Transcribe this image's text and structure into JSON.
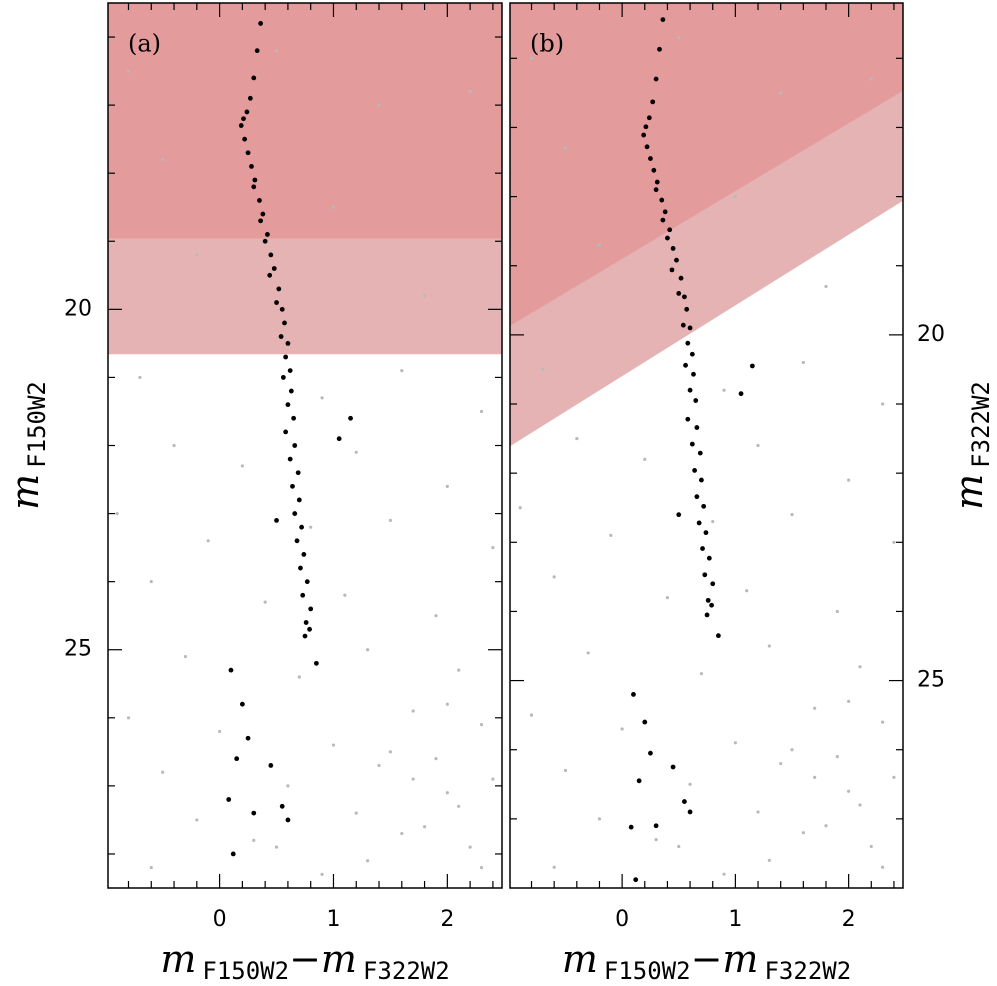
{
  "chart_data": [
    {
      "type": "scatter",
      "panel_label": "(a)",
      "y_axis_side": "left",
      "y_inverted": true,
      "xlim": [
        -0.98,
        2.48
      ],
      "ylim": [
        15.5,
        28.5
      ],
      "xticks": [
        0,
        1,
        2
      ],
      "xticks_minor": [
        -0.8,
        -0.6,
        -0.4,
        -0.2,
        0.2,
        0.4,
        0.6,
        0.8,
        1.2,
        1.4,
        1.6,
        1.8,
        2.2,
        2.4
      ],
      "yticks": [
        20,
        25
      ],
      "yticks_minor": [
        16,
        17,
        18,
        19,
        21,
        22,
        23,
        24,
        26,
        27,
        28
      ],
      "x_label": [
        {
          "text": "m",
          "italic": true
        },
        {
          "text": "F150W2",
          "sub": true
        },
        {
          "text": "−"
        },
        {
          "text": "m",
          "italic": true
        },
        {
          "text": "F322W2",
          "sub": true
        }
      ],
      "y_label": [
        {
          "text": "m",
          "italic": true
        },
        {
          "text": "F150W2",
          "sub": true
        }
      ],
      "shaded_regions": [
        {
          "color": "#e5b3b3",
          "lower_edge": {
            "x": [
              -0.98,
              2.48
            ],
            "y": [
              20.66,
              20.66
            ]
          }
        },
        {
          "color": "#e49b9b",
          "lower_edge": {
            "x": [
              -0.98,
              2.48
            ],
            "y": [
              18.96,
              18.96
            ]
          }
        }
      ],
      "series": [
        {
          "color": "#b9b9b9",
          "x": [
            -0.8,
            -0.5,
            -0.2,
            0.5,
            1.0,
            1.4,
            1.8,
            2.2,
            -0.7,
            0.9,
            1.6,
            2.3,
            -0.4,
            0.2,
            1.2,
            2.0,
            -0.9,
            -0.1,
            0.8,
            1.5,
            2.4,
            -0.6,
            0.4,
            1.1,
            1.9,
            -0.3,
            0.7,
            1.3,
            2.1,
            -0.8,
            0.0,
            1.0,
            1.7,
            2.3,
            -0.5,
            0.6,
            1.4,
            2.0,
            2.4,
            -0.2,
            0.3,
            1.2,
            1.8,
            2.2,
            1.5,
            1.9,
            2.1,
            1.6,
            2.3,
            1.3,
            0.9,
            0.5,
            -0.6,
            1.7,
            2.0
          ],
          "values": [
            16.5,
            17.8,
            19.2,
            16.2,
            18.5,
            17.0,
            19.8,
            16.8,
            21.0,
            21.3,
            20.9,
            21.5,
            22.0,
            22.3,
            22.1,
            22.6,
            23.0,
            23.4,
            23.2,
            23.1,
            23.5,
            24.0,
            24.3,
            24.2,
            24.5,
            25.1,
            25.4,
            25.0,
            25.3,
            26.0,
            26.2,
            26.4,
            25.9,
            26.1,
            26.8,
            27.0,
            26.7,
            27.1,
            26.9,
            27.5,
            27.8,
            27.4,
            27.6,
            27.9,
            26.5,
            26.6,
            27.3,
            27.7,
            28.2,
            28.1,
            28.3,
            27.9,
            28.2,
            26.9,
            25.8
          ]
        },
        {
          "color": "#000000",
          "x": [
            0.36,
            0.33,
            0.3,
            0.27,
            0.24,
            0.21,
            0.19,
            0.22,
            0.25,
            0.28,
            0.31,
            0.3,
            0.35,
            0.38,
            0.36,
            0.42,
            0.4,
            0.45,
            0.48,
            0.44,
            0.52,
            0.5,
            0.55,
            0.57,
            0.54,
            0.6,
            0.58,
            0.62,
            0.56,
            0.63,
            0.6,
            0.65,
            0.58,
            0.66,
            0.62,
            0.69,
            0.64,
            0.7,
            0.66,
            0.72,
            0.68,
            0.74,
            0.71,
            0.77,
            0.73,
            0.8,
            0.76,
            0.79,
            0.75,
            1.15,
            1.05,
            0.85,
            0.5,
            0.1,
            0.2,
            0.25,
            0.15,
            0.45,
            0.08,
            0.55,
            0.3,
            0.6,
            0.12
          ],
          "values": [
            15.8,
            16.2,
            16.6,
            16.9,
            17.1,
            17.2,
            17.3,
            17.5,
            17.7,
            17.9,
            18.1,
            18.2,
            18.4,
            18.6,
            18.7,
            18.9,
            19.0,
            19.2,
            19.4,
            19.5,
            19.7,
            19.9,
            20.0,
            20.2,
            20.4,
            20.5,
            20.7,
            20.9,
            21.0,
            21.2,
            21.4,
            21.6,
            21.8,
            22.0,
            22.2,
            22.4,
            22.6,
            22.8,
            23.0,
            23.2,
            23.4,
            23.6,
            23.8,
            24.0,
            24.2,
            24.4,
            24.6,
            24.7,
            24.8,
            21.6,
            21.9,
            25.2,
            23.1,
            25.3,
            25.8,
            26.3,
            26.6,
            26.7,
            27.2,
            27.3,
            27.4,
            27.5,
            28.0
          ]
        }
      ]
    },
    {
      "type": "scatter",
      "panel_label": "(b)",
      "y_axis_side": "right",
      "y_inverted": true,
      "xlim": [
        -0.99,
        2.48
      ],
      "ylim": [
        15.2,
        28.0
      ],
      "xticks": [
        0,
        1,
        2
      ],
      "xticks_minor": [
        -0.8,
        -0.6,
        -0.4,
        -0.2,
        0.2,
        0.4,
        0.6,
        0.8,
        1.2,
        1.4,
        1.6,
        1.8,
        2.2,
        2.4
      ],
      "yticks": [
        20,
        25
      ],
      "yticks_minor": [
        16,
        17,
        18,
        19,
        21,
        22,
        23,
        24,
        26,
        27
      ],
      "x_label": [
        {
          "text": "m",
          "italic": true
        },
        {
          "text": "F150W2",
          "sub": true
        },
        {
          "text": "−"
        },
        {
          "text": "m",
          "italic": true
        },
        {
          "text": "F322W2",
          "sub": true
        }
      ],
      "y_label": [
        {
          "text": "m",
          "italic": true
        },
        {
          "text": "F322W2",
          "sub": true
        }
      ],
      "shaded_regions": [
        {
          "color": "#e5b3b3",
          "lower_edge": {
            "x": [
              -0.99,
              2.48
            ],
            "y": [
              21.61,
              18.06
            ]
          }
        },
        {
          "color": "#e49b9b",
          "lower_edge": {
            "x": [
              -0.99,
              2.48
            ],
            "y": [
              19.87,
              16.47
            ]
          }
        }
      ],
      "series": [
        {
          "color": "#b9b9b9",
          "x": [
            -0.8,
            -0.5,
            -0.2,
            0.5,
            1.0,
            1.4,
            1.8,
            2.2,
            -0.7,
            0.9,
            1.6,
            2.3,
            -0.4,
            0.2,
            1.2,
            2.0,
            -0.9,
            -0.1,
            0.8,
            1.5,
            2.4,
            -0.6,
            0.4,
            1.1,
            1.9,
            -0.3,
            0.7,
            1.3,
            2.1,
            -0.8,
            0.0,
            1.0,
            1.7,
            2.3,
            -0.5,
            0.6,
            1.4,
            2.0,
            2.4,
            -0.2,
            0.3,
            1.2,
            1.8,
            2.2,
            1.5,
            1.9,
            2.1,
            1.6,
            2.3,
            1.3,
            0.9,
            0.5,
            -0.6,
            1.7,
            2.0
          ],
          "values": [
            16.0,
            17.3,
            18.7,
            15.7,
            18.0,
            16.5,
            19.3,
            16.3,
            20.5,
            20.8,
            20.4,
            21.0,
            21.5,
            21.8,
            21.6,
            22.1,
            22.5,
            22.9,
            22.7,
            22.6,
            23.0,
            23.5,
            23.8,
            23.7,
            24.0,
            24.6,
            24.9,
            24.5,
            24.8,
            25.5,
            25.7,
            25.9,
            25.4,
            25.6,
            26.3,
            26.5,
            26.2,
            26.6,
            26.4,
            27.0,
            27.3,
            26.9,
            27.1,
            27.4,
            26.0,
            26.1,
            26.8,
            27.2,
            27.7,
            27.6,
            27.8,
            27.4,
            27.7,
            26.4,
            25.3
          ]
        },
        {
          "color": "#000000",
          "x": [
            0.36,
            0.33,
            0.3,
            0.27,
            0.24,
            0.21,
            0.19,
            0.22,
            0.25,
            0.28,
            0.31,
            0.3,
            0.35,
            0.38,
            0.36,
            0.42,
            0.4,
            0.45,
            0.48,
            0.44,
            0.52,
            0.5,
            0.55,
            0.57,
            0.54,
            0.6,
            0.58,
            0.62,
            0.56,
            0.63,
            0.6,
            0.65,
            0.58,
            0.66,
            0.62,
            0.69,
            0.64,
            0.7,
            0.66,
            0.72,
            0.68,
            0.74,
            0.71,
            0.77,
            0.73,
            0.8,
            0.76,
            0.79,
            0.75,
            1.15,
            1.05,
            0.85,
            0.5,
            0.1,
            0.2,
            0.25,
            0.15,
            0.45,
            0.08,
            0.55,
            0.3,
            0.6,
            0.12
          ],
          "values": [
            15.44,
            15.87,
            16.3,
            16.63,
            16.86,
            16.99,
            17.11,
            17.28,
            17.45,
            17.62,
            17.79,
            17.9,
            18.05,
            18.22,
            18.34,
            18.48,
            18.6,
            18.75,
            18.92,
            19.06,
            19.18,
            19.4,
            19.45,
            19.63,
            19.86,
            19.9,
            20.12,
            20.28,
            20.44,
            20.57,
            20.8,
            20.95,
            21.22,
            21.34,
            21.58,
            21.71,
            21.96,
            22.1,
            22.34,
            22.48,
            22.72,
            22.86,
            23.09,
            23.23,
            23.47,
            23.6,
            23.84,
            23.91,
            24.05,
            20.45,
            20.85,
            24.35,
            22.6,
            25.2,
            25.6,
            26.05,
            26.45,
            26.25,
            27.12,
            26.75,
            27.1,
            26.9,
            27.88
          ]
        }
      ]
    }
  ]
}
